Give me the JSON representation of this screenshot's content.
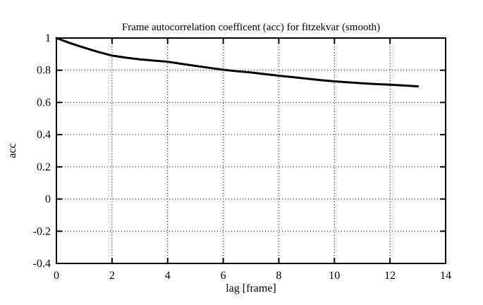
{
  "chart_data": {
    "type": "line",
    "title": "Frame autocorrelation coefficent (acc) for fitzekvar (smooth)",
    "xlabel": "lag [frame]",
    "ylabel": "acc",
    "xlim": [
      0,
      14
    ],
    "ylim": [
      -0.4,
      1
    ],
    "xticks": [
      "0",
      "2",
      "4",
      "6",
      "8",
      "10",
      "12",
      "14"
    ],
    "yticks": [
      "1",
      "0.8",
      "0.6",
      "0.4",
      "0.2",
      "0",
      "-0.2",
      "-0.4"
    ],
    "grid": true,
    "legend": false,
    "line_color": "#000000",
    "background_color": "#ffffff",
    "series": [
      {
        "name": "acc",
        "x": [
          0,
          0.5,
          1,
          1.5,
          2,
          2.5,
          3,
          3.5,
          4,
          4.5,
          5,
          5.5,
          6,
          6.5,
          7,
          7.5,
          8,
          8.5,
          9,
          9.5,
          10,
          10.5,
          11,
          11.5,
          12,
          12.5,
          13
        ],
        "values": [
          1.0,
          0.968,
          0.94,
          0.914,
          0.891,
          0.878,
          0.868,
          0.86,
          0.853,
          0.84,
          0.827,
          0.815,
          0.803,
          0.794,
          0.786,
          0.776,
          0.766,
          0.757,
          0.748,
          0.739,
          0.731,
          0.725,
          0.719,
          0.714,
          0.71,
          0.705,
          0.7
        ]
      }
    ]
  }
}
